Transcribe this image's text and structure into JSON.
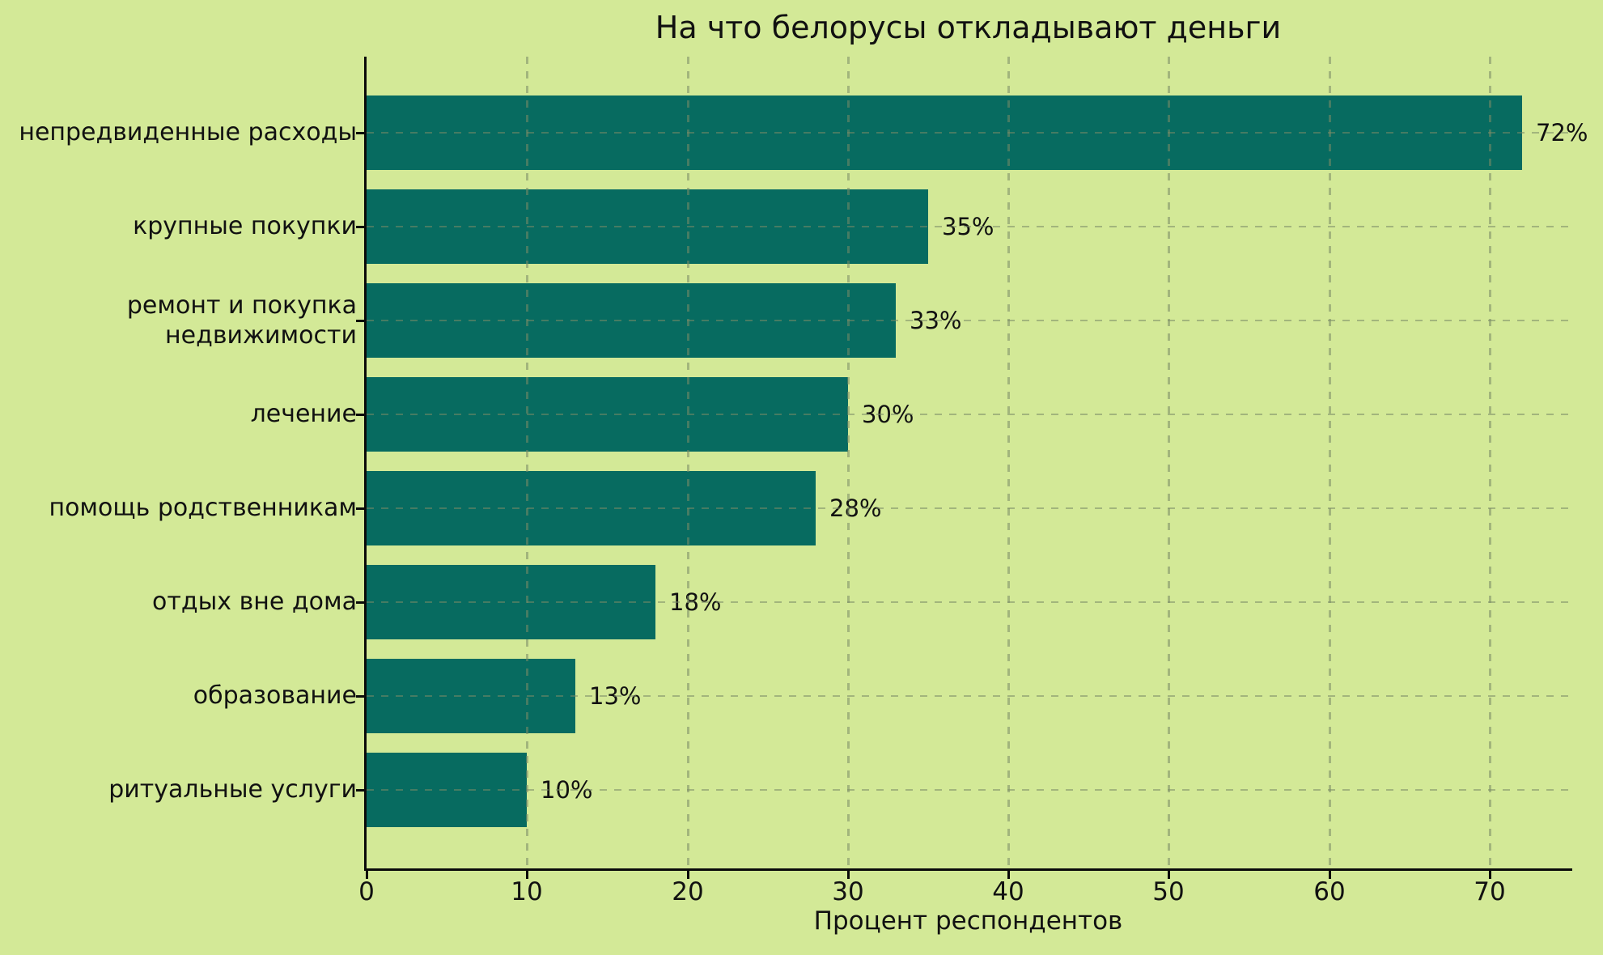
{
  "figure": {
    "title": "На что белорусы откладывают деньги",
    "xlabel": "Процент респондентов"
  },
  "chart_data": {
    "type": "bar",
    "orientation": "horizontal",
    "title": "На что белорусы откладывают деньги",
    "xlabel": "Процент респондентов",
    "ylabel": "",
    "categories": [
      "непредвиденные расходы",
      "крупные покупки",
      "ремонт и покупка недвижимости",
      "лечение",
      "помощь родственникам",
      "отдых вне дома",
      "образование",
      "ритуальные услуги"
    ],
    "values": [
      72,
      35,
      33,
      30,
      28,
      18,
      13,
      10
    ],
    "bar_labels": [
      "72%",
      "35%",
      "33%",
      "30%",
      "28%",
      "18%",
      "13%",
      "10%"
    ],
    "xticks": [
      0,
      10,
      20,
      30,
      40,
      50,
      60,
      70
    ],
    "xlim": [
      0,
      75
    ],
    "grid": "dashed, vertical at x-ticks and horizontal at category centers",
    "legend": "none",
    "colors": {
      "bar": "#076b60",
      "background": "#d3e997",
      "text": "#111111",
      "grid": "rgba(122,138,102,0.55)"
    }
  }
}
